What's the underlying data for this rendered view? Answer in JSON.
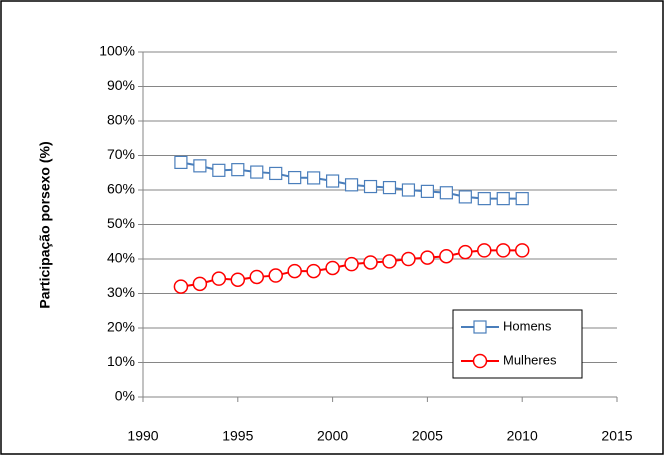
{
  "chart_data": {
    "type": "line",
    "y_label": "Participação porsexo (%)",
    "x": [
      1992,
      1993,
      1994,
      1995,
      1996,
      1997,
      1998,
      1999,
      2000,
      2001,
      2002,
      2003,
      2004,
      2005,
      2006,
      2007,
      2008,
      2009,
      2010
    ],
    "series": [
      {
        "name": "Homens",
        "color": "#4a7ebb",
        "marker": "square",
        "values": [
          68,
          67,
          65.7,
          65.9,
          65.2,
          64.8,
          63.6,
          63.5,
          62.6,
          61.5,
          61,
          60.7,
          60,
          59.6,
          59.2,
          58,
          57.5,
          57.5,
          57.5
        ]
      },
      {
        "name": "Mulheres",
        "color": "#ff0000",
        "marker": "circle",
        "values": [
          32,
          32.8,
          34.3,
          34,
          34.8,
          35.2,
          36.5,
          36.5,
          37.4,
          38.5,
          39,
          39.3,
          40,
          40.4,
          40.8,
          42,
          42.5,
          42.5,
          42.5
        ]
      }
    ],
    "xlim": [
      1990,
      2015
    ],
    "xticks": [
      1990,
      1995,
      2000,
      2005,
      2010,
      2015
    ],
    "ylim": [
      0,
      100
    ],
    "yticks": [
      {
        "value": 0,
        "label": "0%"
      },
      {
        "value": 10,
        "label": "10%"
      },
      {
        "value": 20,
        "label": "20%"
      },
      {
        "value": 30,
        "label": "30%"
      },
      {
        "value": 40,
        "label": "40%"
      },
      {
        "value": 50,
        "label": "50%"
      },
      {
        "value": 60,
        "label": "60%"
      },
      {
        "value": 70,
        "label": "70%"
      },
      {
        "value": 80,
        "label": "80%"
      },
      {
        "value": 90,
        "label": "90%"
      },
      {
        "value": 100,
        "label": "100%"
      }
    ],
    "grid": true,
    "legend": "lower-right"
  }
}
